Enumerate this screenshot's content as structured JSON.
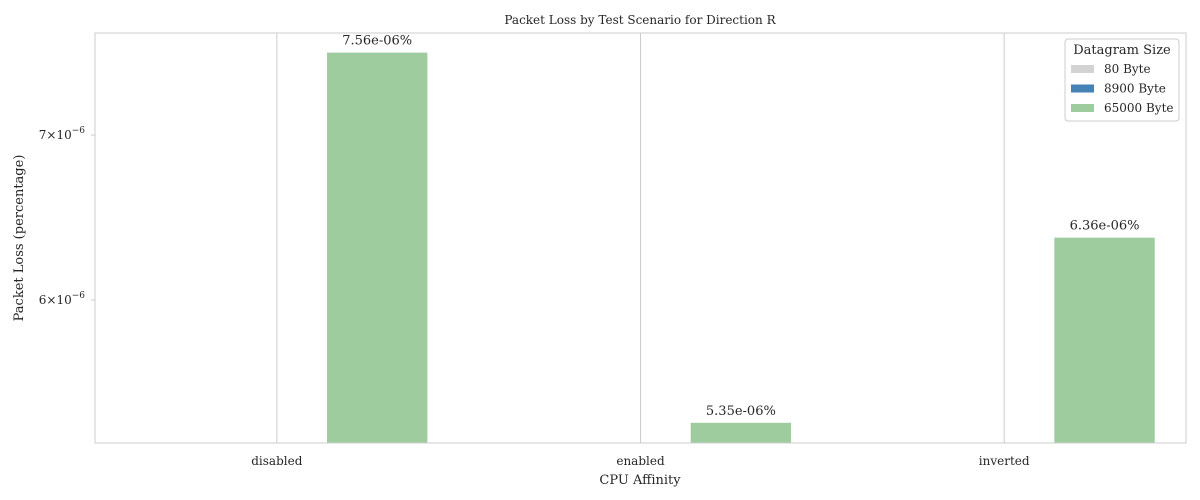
{
  "chart_data": {
    "type": "bar",
    "title": "Packet Loss by Test Scenario for Direction R",
    "xlabel": "CPU Affinity",
    "ylabel": "Packet Loss (percentage)",
    "yscale": "log",
    "ylim": [
      5.25e-06,
      7.7e-06
    ],
    "categories": [
      "disabled",
      "enabled",
      "inverted"
    ],
    "y_ticks": [
      {
        "value": 6e-06,
        "base": "6×10",
        "exp": "−6"
      },
      {
        "value": 7e-06,
        "base": "7×10",
        "exp": "−6"
      }
    ],
    "series": [
      {
        "name": "80 Byte",
        "color": "#d3d3d3",
        "values": [
          null,
          null,
          null
        ],
        "labels": [
          "",
          "",
          ""
        ]
      },
      {
        "name": "8900 Byte",
        "color": "#4682b4",
        "values": [
          null,
          null,
          null
        ],
        "labels": [
          "",
          "",
          ""
        ]
      },
      {
        "name": "65000 Byte",
        "color": "#9ecc9e",
        "values": [
          7.56e-06,
          5.35e-06,
          6.36e-06
        ],
        "labels": [
          "7.56e-06%",
          "5.35e-06%",
          "6.36e-06%"
        ]
      }
    ],
    "legend": {
      "title": "Datagram Size",
      "position": "top-right"
    },
    "grid": {
      "x": true,
      "y": false
    }
  }
}
